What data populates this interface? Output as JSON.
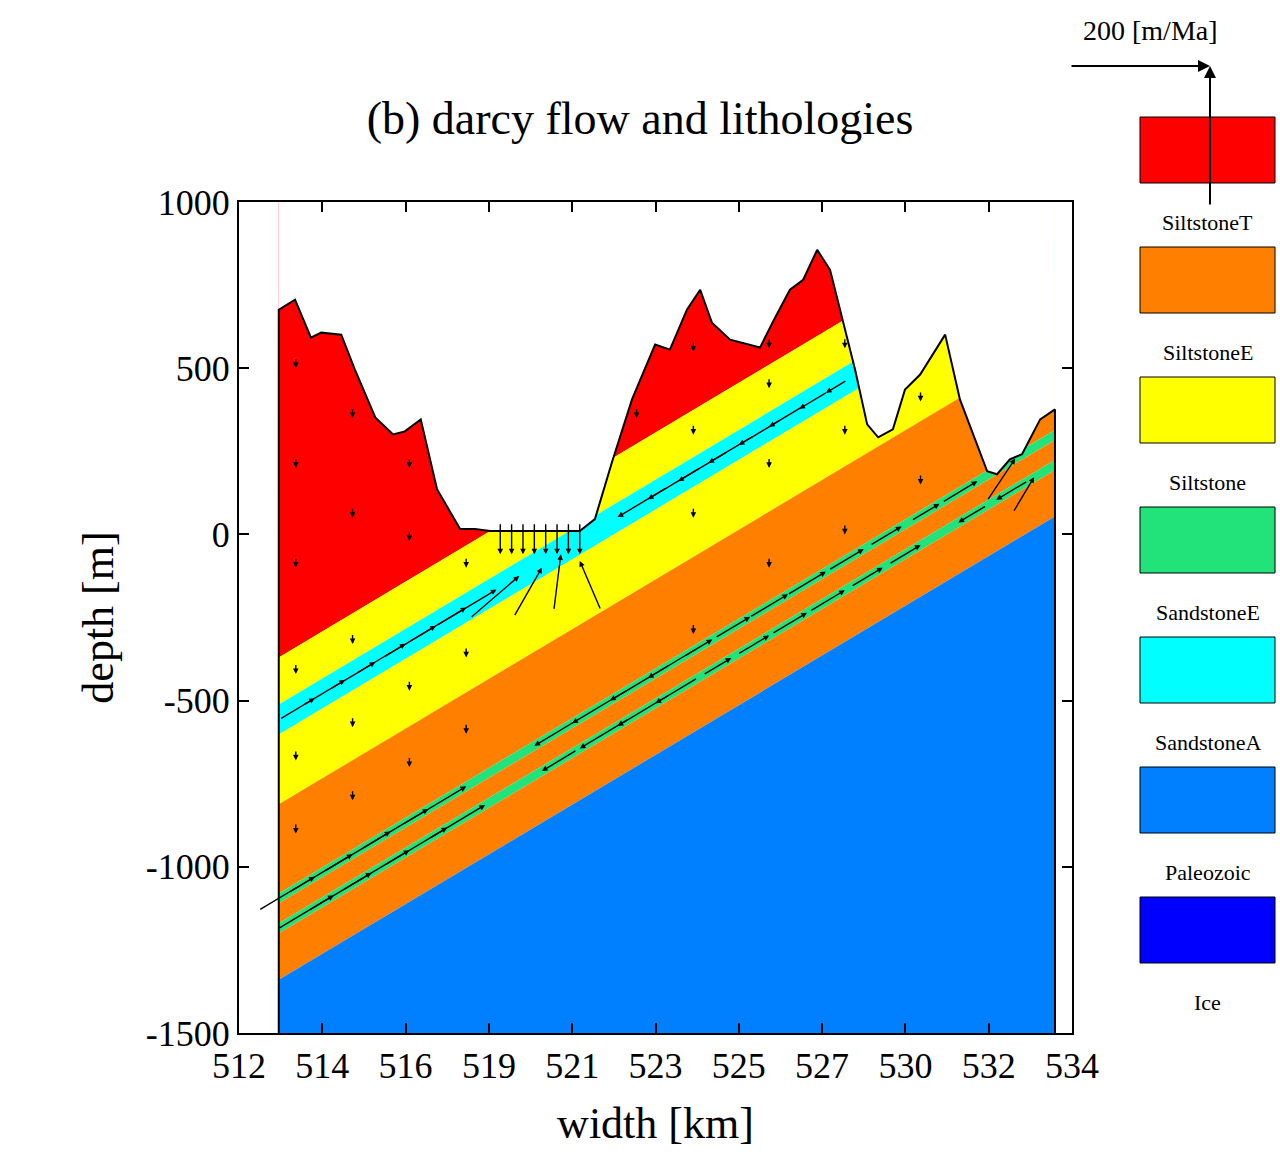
{
  "chart_data": {
    "type": "cross_section",
    "title": "(b) darcy flow and lithologies",
    "x_label": "width [km]",
    "y_label": "depth [m]",
    "xlim": [
      512,
      534
    ],
    "ylim": [
      -1500,
      1000
    ],
    "xticks": [
      512,
      {
        "value": 514.2,
        "label": "514"
      },
      {
        "value": 516.4,
        "label": "516"
      },
      {
        "value": 518.6,
        "label": "519"
      },
      {
        "value": 520.8,
        "label": "521"
      },
      523,
      {
        "value": 525.2,
        "label": "525"
      },
      {
        "value": 527.4,
        "label": "527"
      },
      {
        "value": 529.6,
        "label": "530"
      },
      {
        "value": 531.8,
        "label": "532"
      },
      534
    ],
    "yticks": [
      -1500,
      -1000,
      -500,
      0,
      500,
      1000
    ],
    "legend": "right",
    "legend_items": [
      {
        "name": "SiltstoneT",
        "color": "#ff0000"
      },
      {
        "name": "SiltstoneE",
        "color": "#ff8000"
      },
      {
        "name": "Siltstone",
        "color": "#ffff00"
      },
      {
        "name": "SandstoneE",
        "color": "#22e27a"
      },
      {
        "name": "SandstoneA",
        "color": "#00ffff"
      },
      {
        "name": "Paleozoic",
        "color": "#0080ff"
      },
      {
        "name": "Ice",
        "color": "#0000ff"
      }
    ],
    "section_x": [
      513.05,
      533.55
    ],
    "bands": [
      {
        "name": "SiltstoneT",
        "top": null,
        "base": [
          -370,
          1024
        ]
      },
      {
        "name": "Siltstone",
        "top": [
          -370,
          1024
        ],
        "base": [
          -512,
          882
        ]
      },
      {
        "name": "SandstoneA",
        "top": [
          -512,
          882
        ],
        "base": [
          -602,
          792
        ]
      },
      {
        "name": "Siltstone",
        "top": [
          -602,
          792
        ],
        "base": [
          -812,
          582
        ]
      },
      {
        "name": "SiltstoneE",
        "top": [
          -812,
          582
        ],
        "base": [
          -1080,
          314
        ]
      },
      {
        "name": "SandstoneE",
        "top": [
          -1080,
          314
        ],
        "base": [
          -1110,
          284
        ]
      },
      {
        "name": "SiltstoneE",
        "top": [
          -1110,
          284
        ],
        "base": [
          -1170,
          224
        ]
      },
      {
        "name": "SandstoneE",
        "top": [
          -1170,
          224
        ],
        "base": [
          -1200,
          194
        ]
      },
      {
        "name": "SiltstoneE",
        "top": [
          -1200,
          194
        ],
        "base": [
          -1340,
          54
        ]
      },
      {
        "name": "Paleozoic",
        "top": [
          -1340,
          54
        ],
        "base": null
      }
    ],
    "surface": {
      "x": [
        513.05,
        513.48,
        513.9,
        514.17,
        514.7,
        515.06,
        515.6,
        516.07,
        516.38,
        516.8,
        517.23,
        517.84,
        518.23,
        518.63,
        521.0,
        521.4,
        521.85,
        522.38,
        522.99,
        523.38,
        523.83,
        524.18,
        524.49,
        524.97,
        525.76,
        526.13,
        526.55,
        526.9,
        527.27,
        527.61,
        527.93,
        528.27,
        528.59,
        528.88,
        529.27,
        529.59,
        529.99,
        530.65,
        531.04,
        531.44,
        531.76,
        532.02,
        532.36,
        532.68,
        533.16,
        533.55
      ],
      "y": [
        676,
        706,
        592,
        607,
        601,
        496,
        352,
        301,
        310,
        346,
        136,
        16,
        16,
        10,
        10,
        46,
        217,
        406,
        571,
        556,
        676,
        736,
        637,
        586,
        562,
        646,
        736,
        766,
        856,
        796,
        646,
        496,
        331,
        292,
        316,
        436,
        481,
        601,
        406,
        286,
        190,
        181,
        226,
        241,
        346,
        376
      ]
    },
    "vectors": {
      "x": [
        514.0,
        514.8,
        515.6,
        516.4,
        517.2,
        518.0,
        518.8,
        519.4,
        520.0,
        520.5,
        521.0,
        522.0,
        522.8,
        523.6,
        524.4,
        525.2,
        526.0,
        526.8,
        527.5,
        518.9,
        519.2,
        519.5,
        519.8,
        520.1,
        520.4,
        520.7,
        521.0,
        514.0,
        515.0,
        516.0,
        517.0,
        518.0,
        514.5,
        515.5,
        516.5,
        517.5,
        518.5,
        519.8,
        520.8,
        521.8,
        522.8,
        520.0,
        521.0,
        522.0,
        523.0,
        524.5,
        525.5,
        526.5,
        527.5,
        528.5,
        529.5,
        530.5,
        531.5,
        532.5,
        525.0,
        526.0,
        527.0,
        528.0,
        529.0,
        530.0,
        531.0,
        532.0,
        533.0,
        513.5,
        513.5,
        513.5,
        513.5,
        513.5,
        513.5,
        515,
        515,
        515,
        515,
        515,
        516.5,
        516.5,
        516.5,
        516.5,
        518,
        518,
        518,
        522.5,
        524,
        524,
        524,
        524,
        526,
        526,
        526,
        526,
        528,
        528,
        528,
        530,
        530
      ],
      "y": [
        -493,
        -438,
        -384,
        -329,
        -275,
        -220,
        -166,
        -125,
        -100,
        -60,
        -80,
        52,
        106,
        160,
        215,
        269,
        324,
        378,
        426,
        -60,
        -60,
        -60,
        -60,
        -60,
        -60,
        -60,
        -60,
        -1030,
        -962,
        -894,
        -826,
        -758,
        -1086,
        -1018,
        -950,
        -882,
        -814,
        -636,
        -568,
        -500,
        -432,
        -712,
        -644,
        -576,
        -508,
        -316,
        -248,
        -180,
        -112,
        -44,
        24,
        92,
        160,
        228,
        -372,
        -304,
        -236,
        -168,
        -100,
        -32,
        36,
        104,
        172,
        500,
        200,
        -100,
        -420,
        -680,
        -900,
        350,
        50,
        -330,
        -580,
        -800,
        200,
        -20,
        -470,
        -700,
        -100,
        -370,
        -600,
        350,
        550,
        300,
        50,
        -300,
        560,
        440,
        200,
        -100,
        560,
        300,
        0,
        400,
        150
      ],
      "u": [
        50,
        60,
        65,
        70,
        75,
        80,
        85,
        70,
        40,
        10,
        -30,
        -70,
        -75,
        -70,
        -65,
        -60,
        -50,
        -40,
        -30,
        0,
        0,
        0,
        0,
        0,
        0,
        0,
        0,
        80,
        90,
        95,
        95,
        90,
        80,
        90,
        95,
        90,
        80,
        -60,
        -80,
        -85,
        -70,
        -50,
        -70,
        -75,
        -60,
        40,
        50,
        55,
        55,
        50,
        45,
        40,
        50,
        40,
        40,
        45,
        50,
        50,
        45,
        45,
        -40,
        -45,
        30,
        0,
        0,
        0,
        0,
        0,
        0,
        0,
        0,
        0,
        0,
        0,
        0,
        0,
        0,
        0,
        0,
        0,
        0,
        0,
        0,
        0,
        0,
        0,
        0,
        0,
        0,
        0,
        0,
        0,
        0,
        0,
        0
      ],
      "v": [
        30,
        36,
        39,
        42,
        45,
        48,
        51,
        60,
        70,
        80,
        70,
        -42,
        -45,
        -42,
        -39,
        -36,
        -30,
        -24,
        -18,
        -45,
        -45,
        -45,
        -45,
        -45,
        -45,
        -45,
        -45,
        48,
        54,
        57,
        57,
        54,
        48,
        54,
        57,
        54,
        48,
        -36,
        -48,
        -51,
        -42,
        -30,
        -42,
        -45,
        -36,
        24,
        30,
        33,
        33,
        30,
        27,
        24,
        30,
        60,
        24,
        27,
        30,
        30,
        27,
        27,
        -24,
        -27,
        50,
        -15,
        -15,
        -15,
        -15,
        -15,
        -15,
        -15,
        -15,
        -15,
        -15,
        -15,
        -15,
        -15,
        -15,
        -15,
        -15,
        -15,
        -15,
        -15,
        -15,
        -15,
        -15,
        -15,
        -15,
        -15,
        -15,
        -15,
        -15,
        -15,
        -15,
        -15,
        -15
      ]
    },
    "scale_arrow": {
      "value": 200,
      "label": "200 [m/Ma]"
    }
  }
}
